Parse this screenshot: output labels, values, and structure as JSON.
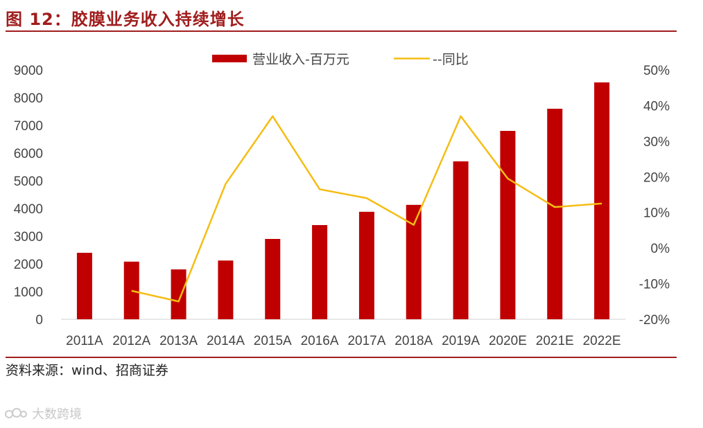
{
  "figure": {
    "title": "图 12：胶膜业务收入持续增长",
    "source": "资料来源：wind、招商证券",
    "watermark": "大数跨境"
  },
  "colors": {
    "accent": "#a01d1d",
    "bar": "#c00000",
    "line": "#f5bd14"
  },
  "chart_data": {
    "type": "bar",
    "categories": [
      "2011A",
      "2012A",
      "2013A",
      "2014A",
      "2015A",
      "2016A",
      "2017A",
      "2018A",
      "2019A",
      "2020E",
      "2021E",
      "2022E"
    ],
    "series": [
      {
        "name": "营业收入-百万元",
        "type": "bar",
        "axis": "left",
        "values": [
          2400,
          2080,
          1800,
          2120,
          2900,
          3400,
          3880,
          4130,
          5700,
          6800,
          7600,
          8550
        ]
      },
      {
        "name": "--同比",
        "type": "line",
        "axis": "right",
        "values": [
          null,
          -12,
          -15,
          18,
          37,
          16.5,
          14,
          6.5,
          37,
          19.5,
          11.5,
          12.5
        ]
      }
    ],
    "left_axis": {
      "ylim": [
        0,
        9000
      ],
      "ticks": [
        "0",
        "1000",
        "2000",
        "3000",
        "4000",
        "5000",
        "6000",
        "7000",
        "8000",
        "9000"
      ]
    },
    "right_axis": {
      "ylim": [
        -20,
        50
      ],
      "ticks": [
        "-20%",
        "-10%",
        "0%",
        "10%",
        "20%",
        "30%",
        "40%",
        "50%"
      ]
    },
    "legend_position": "top-center",
    "grid": false
  }
}
